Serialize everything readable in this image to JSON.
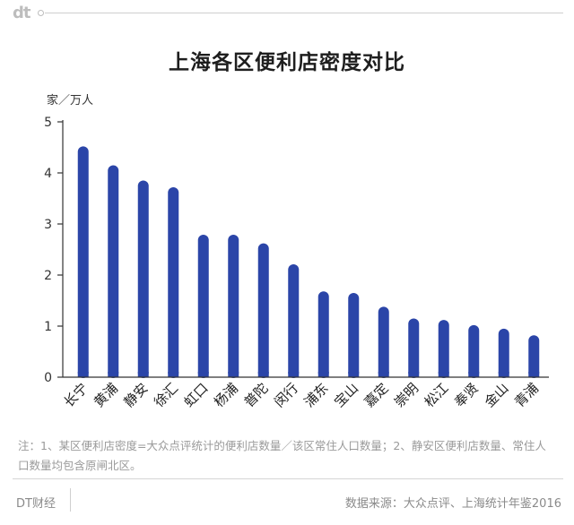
{
  "brand": {
    "logo_text": "dt"
  },
  "footer": {
    "left": "DT财经",
    "right": "数据来源：大众点评、上海统计年鉴2016"
  },
  "note": "注：1、某区便利店密度=大众点评统计的便利店数量／该区常住人口数量；2、静安区便利店数量、常住人口数量均包含原闸北区。",
  "colors": {
    "bar": "#2b45a8",
    "axis": "#333333"
  },
  "chart_data": {
    "type": "bar",
    "title": "上海各区便利店密度对比",
    "ylabel": "家／万人",
    "xlabel": "",
    "ylim": [
      0,
      5
    ],
    "yticks": [
      0,
      1,
      2,
      3,
      4,
      5
    ],
    "grid": false,
    "categories": [
      "长宁",
      "黄浦",
      "静安",
      "徐汇",
      "虹口",
      "杨浦",
      "普陀",
      "闵行",
      "浦东",
      "宝山",
      "嘉定",
      "崇明",
      "松江",
      "奉贤",
      "金山",
      "青浦"
    ],
    "values": [
      4.52,
      4.15,
      3.85,
      3.72,
      2.79,
      2.79,
      2.62,
      2.21,
      1.68,
      1.65,
      1.38,
      1.15,
      1.12,
      1.02,
      0.95,
      0.82
    ]
  }
}
